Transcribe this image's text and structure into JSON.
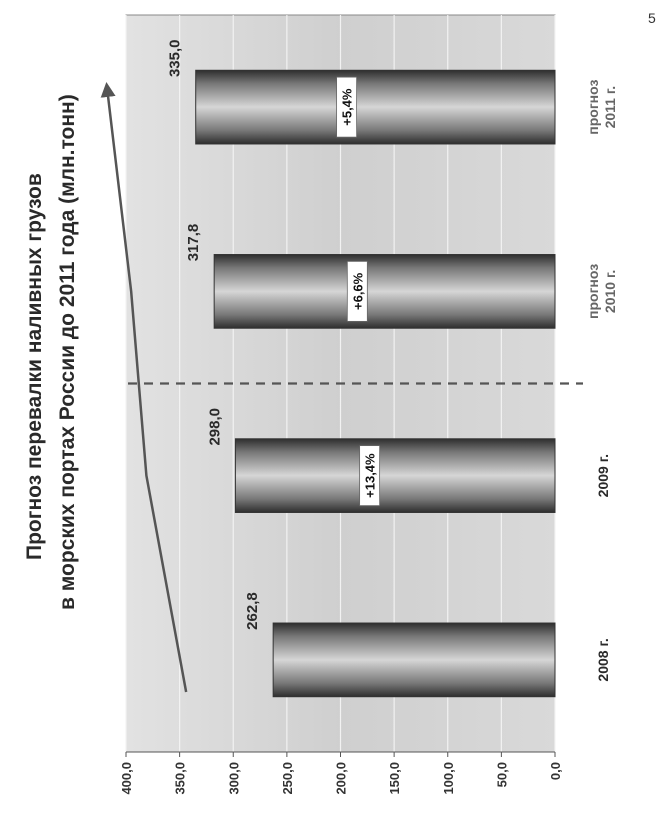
{
  "title_line1": "Прогноз перевалки наливных грузов",
  "title_line2": "в морских портах России до 2011 года (млн.тонн)",
  "page_number": "5",
  "chart_data": {
    "type": "bar",
    "orientation": "rotated-90",
    "categories": [
      "2008 г.",
      "2009 г.",
      "прогноз 2010 г.",
      "прогноз 2011 г."
    ],
    "category_lines": [
      [
        "2008 г."
      ],
      [
        "2009 г."
      ],
      [
        "прогноз",
        "2010 г."
      ],
      [
        "прогноз",
        "2011 г."
      ]
    ],
    "values": [
      262.8,
      298.0,
      317.8,
      335.0
    ],
    "value_labels": [
      "262,8",
      "298,0",
      "317,8",
      "335,0"
    ],
    "growth_labels": [
      null,
      "+13,4%",
      "+6,6%",
      "+5,4%"
    ],
    "value_ticks": [
      "0,0",
      "50,0",
      "100,0",
      "150,0",
      "200,0",
      "250,0",
      "300,0",
      "350,0",
      "400,0"
    ],
    "ylim": [
      0,
      400
    ],
    "grid": true,
    "trend_arrow": true,
    "forecast_divider_after_category": 1,
    "colors": {
      "bar_dark": "#3a3a3a",
      "bar_light": "#d9d9d9",
      "plot_bg": "#d6d6d6",
      "divider": "#555555",
      "arrow": "#555555"
    }
  }
}
